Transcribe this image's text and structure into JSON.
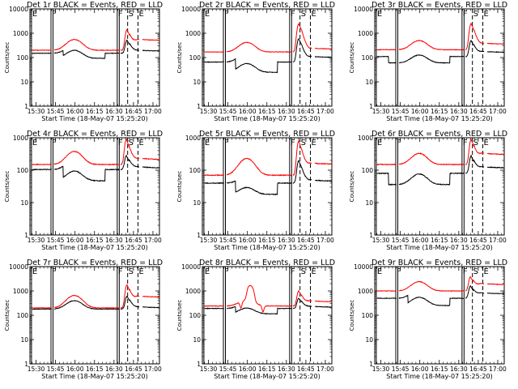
{
  "chart_data": {
    "type": "line",
    "x_tick_labels": [
      "15:30",
      "15:45",
      "16:00",
      "16:15",
      "16:30",
      "16:45",
      "17:00"
    ],
    "x_tick_minutes": [
      0,
      15,
      30,
      45,
      60,
      75,
      90
    ],
    "x_range_minutes": [
      -4.7,
      95
    ],
    "xlabel": "Start Time (18-May-07 15:25:20)",
    "ylabel": "Counts/sec",
    "y_scale": "log",
    "colors": {
      "events": "#000000",
      "lld": "#ff0000"
    },
    "panels": [
      {
        "title": "Det 1r BLACK = Events, RED = LLD",
        "ylim": [
          1,
          10000
        ],
        "y_tick_labels": [
          "1",
          "10",
          "100",
          "1000",
          "10000"
        ],
        "flags": [
          {
            "label": "E",
            "x": -3.5,
            "style": "solid"
          },
          {
            "label": "F",
            "x": 11.5,
            "style": "solid"
          },
          {
            "label": "F",
            "x": 62.5,
            "style": "solid"
          },
          {
            "label": "S",
            "x": 70.5,
            "style": "dashed"
          },
          {
            "label": "E",
            "x": 78.5,
            "style": "dashed"
          }
        ],
        "gaps": [
          [
            12,
            14
          ],
          [
            64,
            65
          ],
          [
            79.5,
            82
          ]
        ],
        "lld": {
          "base": 200,
          "hump": [
            29.5,
            550
          ],
          "flare": [
            70,
            1400
          ],
          "post": 500
        },
        "events": {
          "base": 150,
          "hump": [
            29.5,
            320
          ],
          "flare": [
            70,
            520
          ],
          "post": 180,
          "dropout": [
            21,
            53,
            0.62
          ],
          "dropout2": null
        },
        "spikes": []
      },
      {
        "title": "Det 2r BLACK = Events, RED = LLD",
        "ylim": [
          1,
          10000
        ],
        "y_tick_labels": [
          "1",
          "10",
          "100",
          "1000",
          "10000"
        ],
        "flags": [
          {
            "label": "E",
            "x": -3.5,
            "style": "solid"
          },
          {
            "label": "F",
            "x": 11.5,
            "style": "solid"
          },
          {
            "label": "F",
            "x": 62.5,
            "style": "solid"
          },
          {
            "label": "S",
            "x": 70.5,
            "style": "dashed"
          },
          {
            "label": "E",
            "x": 78.5,
            "style": "dashed"
          }
        ],
        "gaps": [
          [
            12,
            14
          ],
          [
            64,
            65
          ],
          [
            79.5,
            82
          ]
        ],
        "lld": {
          "base": 170,
          "hump": [
            29.5,
            420
          ],
          "flare": [
            69.5,
            2500
          ],
          "post": 220
        },
        "events": {
          "base": 65,
          "hump": [
            29.5,
            150
          ],
          "flare": [
            69.5,
            600
          ],
          "post": 100,
          "dropout": [
            21,
            53,
            0.38
          ],
          "dropout2": null
        },
        "spikes": []
      },
      {
        "title": "Det 3r BLACK = Events, RED = LLD",
        "ylim": [
          1,
          10000
        ],
        "y_tick_labels": [
          "1",
          "10",
          "100",
          "1000",
          "10000"
        ],
        "flags": [
          {
            "label": "E",
            "x": -3.5,
            "style": "solid"
          },
          {
            "label": "F",
            "x": 11.5,
            "style": "solid"
          },
          {
            "label": "F",
            "x": 62.5,
            "style": "solid"
          },
          {
            "label": "S",
            "x": 70.5,
            "style": "dashed"
          },
          {
            "label": "E",
            "x": 78.5,
            "style": "dashed"
          }
        ],
        "gaps": [
          [
            12,
            14
          ],
          [
            64,
            65
          ],
          [
            79.5,
            82
          ]
        ],
        "lld": {
          "base": 210,
          "hump": [
            29.5,
            500
          ],
          "flare": [
            69.5,
            2500
          ],
          "post": 350
        },
        "events": {
          "base": 110,
          "hump": [
            29.5,
            230
          ],
          "flare": [
            69.5,
            500
          ],
          "post": 160,
          "dropout": [
            6,
            53,
            0.55
          ],
          "dropout2": null
        },
        "spikes": []
      },
      {
        "title": "Det 4r BLACK = Events, RED = LLD",
        "ylim": [
          1,
          1000
        ],
        "y_tick_labels": [
          "1",
          "10",
          "100",
          "1000"
        ],
        "flags": [
          {
            "label": "E",
            "x": -3.5,
            "style": "solid"
          },
          {
            "label": "F",
            "x": 11.5,
            "style": "solid"
          },
          {
            "label": "F",
            "x": 62.5,
            "style": "solid"
          },
          {
            "label": "S",
            "x": 70.5,
            "style": "dashed"
          },
          {
            "label": "E",
            "x": 78.5,
            "style": "dashed"
          }
        ],
        "gaps": [
          [
            12,
            14
          ],
          [
            64,
            65
          ],
          [
            79.5,
            82
          ]
        ],
        "lld": {
          "base": 150,
          "hump": [
            29.5,
            380
          ],
          "flare": [
            69.5,
            900
          ],
          "post": 210
        },
        "events": {
          "base": 105,
          "hump": [
            29.5,
            210
          ],
          "flare": [
            69.5,
            280
          ],
          "post": 115,
          "dropout": [
            21,
            53,
            0.45
          ],
          "dropout2": null
        },
        "spikes": []
      },
      {
        "title": "Det 5r BLACK = Events, RED = LLD",
        "ylim": [
          1,
          1000
        ],
        "y_tick_labels": [
          "1",
          "10",
          "100",
          "1000"
        ],
        "flags": [
          {
            "label": "E",
            "x": -3.5,
            "style": "solid"
          },
          {
            "label": "F",
            "x": 11.5,
            "style": "solid"
          },
          {
            "label": "F",
            "x": 62.5,
            "style": "solid"
          },
          {
            "label": "S",
            "x": 70.5,
            "style": "dashed"
          },
          {
            "label": "E",
            "x": 78.5,
            "style": "dashed"
          }
        ],
        "gaps": [
          [
            12,
            14
          ],
          [
            64,
            65
          ],
          [
            79.5,
            82
          ]
        ],
        "lld": {
          "base": 70,
          "hump": [
            29.5,
            230
          ],
          "flare": [
            69.5,
            800
          ],
          "post": 150
        },
        "events": {
          "base": 40,
          "hump": [
            29.5,
            65
          ],
          "flare": [
            69.5,
            200
          ],
          "post": 45,
          "dropout": [
            21,
            53,
            0.45
          ],
          "dropout2": null
        },
        "spikes": []
      },
      {
        "title": "Det 6r BLACK = Events, RED = LLD",
        "ylim": [
          1,
          1000
        ],
        "y_tick_labels": [
          "1",
          "10",
          "100",
          "1000"
        ],
        "flags": [
          {
            "label": "E",
            "x": -3.5,
            "style": "solid"
          },
          {
            "label": "F",
            "x": 11.5,
            "style": "solid"
          },
          {
            "label": "F",
            "x": 62.5,
            "style": "solid"
          },
          {
            "label": "S",
            "x": 70.5,
            "style": "dashed"
          },
          {
            "label": "E",
            "x": 78.5,
            "style": "dashed"
          }
        ],
        "gaps": [
          [
            12,
            14
          ],
          [
            64,
            65
          ],
          [
            79.5,
            82
          ]
        ],
        "lld": {
          "base": 150,
          "hump": [
            29.5,
            330
          ],
          "flare": [
            69.5,
            900
          ],
          "post": 300
        },
        "events": {
          "base": 80,
          "hump": [
            29.5,
            170
          ],
          "flare": [
            69.5,
            280
          ],
          "post": 115,
          "dropout": [
            6,
            53,
            0.45
          ],
          "dropout2": null
        },
        "spikes": []
      },
      {
        "title": "Det 7r BLACK = Events, RED = LLD",
        "ylim": [
          1,
          10000
        ],
        "y_tick_labels": [
          "1",
          "10",
          "100",
          "1000",
          "10000"
        ],
        "flags": [
          {
            "label": "E",
            "x": -3.5,
            "style": "solid"
          },
          {
            "label": "F",
            "x": 11.5,
            "style": "solid"
          },
          {
            "label": "F",
            "x": 62.5,
            "style": "solid"
          },
          {
            "label": "S",
            "x": 70.5,
            "style": "dashed"
          },
          {
            "label": "E",
            "x": 78.5,
            "style": "dashed"
          }
        ],
        "gaps": [
          [
            12,
            14
          ],
          [
            64,
            65
          ],
          [
            79.5,
            82
          ]
        ],
        "lld": {
          "base": 200,
          "hump": [
            29.5,
            650
          ],
          "flare": [
            70,
            1800
          ],
          "post": 550
        },
        "events": {
          "base": 180,
          "hump": [
            29.5,
            400
          ],
          "flare": [
            70,
            600
          ],
          "post": 200,
          "dropout": null,
          "dropout2": null
        },
        "spikes": []
      },
      {
        "title": "Det 8r BLACK = Events, RED = LLD",
        "ylim": [
          1,
          10000
        ],
        "y_tick_labels": [
          "1",
          "10",
          "100",
          "1000",
          "10000"
        ],
        "flags": [
          {
            "label": "E",
            "x": -3.5,
            "style": "solid"
          },
          {
            "label": "F",
            "x": 11.5,
            "style": "solid"
          },
          {
            "label": "F",
            "x": 62.5,
            "style": "solid"
          },
          {
            "label": "S",
            "x": 70.5,
            "style": "dashed"
          },
          {
            "label": "E",
            "x": 78.5,
            "style": "dashed"
          }
        ],
        "gaps": [
          [
            12,
            14
          ],
          [
            64,
            65
          ],
          [
            79.5,
            82
          ]
        ],
        "lld": {
          "base": 240,
          "hump": [
            29.5,
            420
          ],
          "flare": [
            69.5,
            1000
          ],
          "post": 350
        },
        "events": {
          "base": 190,
          "hump": [
            29.5,
            330
          ],
          "flare": [
            69.5,
            500
          ],
          "post": 210,
          "dropout": [
            21,
            53,
            0.6
          ],
          "dropout2": null
        },
        "spikes": [
          {
            "x": 31,
            "factor": 3.5,
            "width": 1.6
          },
          {
            "x": 34,
            "factor": 3.5,
            "width": 1.6
          },
          {
            "x": 25,
            "factor": 0.55,
            "width": 1.2
          },
          {
            "x": 42,
            "factor": 0.55,
            "width": 1.2
          }
        ]
      },
      {
        "title": "Det 9r BLACK = Events, RED = LLD",
        "ylim": [
          1,
          10000
        ],
        "y_tick_labels": [
          "1",
          "10",
          "100",
          "1000",
          "10000"
        ],
        "flags": [
          {
            "label": "E",
            "x": -3.5,
            "style": "solid"
          },
          {
            "label": "F",
            "x": 11.5,
            "style": "solid"
          },
          {
            "label": "F",
            "x": 62.5,
            "style": "solid"
          },
          {
            "label": "S",
            "x": 70.5,
            "style": "dashed"
          },
          {
            "label": "E",
            "x": 78.5,
            "style": "dashed"
          }
        ],
        "gaps": [
          [
            12,
            14
          ],
          [
            64,
            65
          ],
          [
            79.5,
            82
          ]
        ],
        "lld": {
          "base": 1000,
          "hump": [
            29.5,
            2400
          ],
          "flare": [
            69,
            3800
          ],
          "post": 1800
        },
        "events": {
          "base": 500,
          "hump": [
            29.5,
            1100
          ],
          "flare": [
            69,
            1600
          ],
          "post": 750,
          "dropout": [
            21,
            53,
            0.5
          ],
          "dropout2": null
        },
        "spikes": []
      }
    ]
  }
}
